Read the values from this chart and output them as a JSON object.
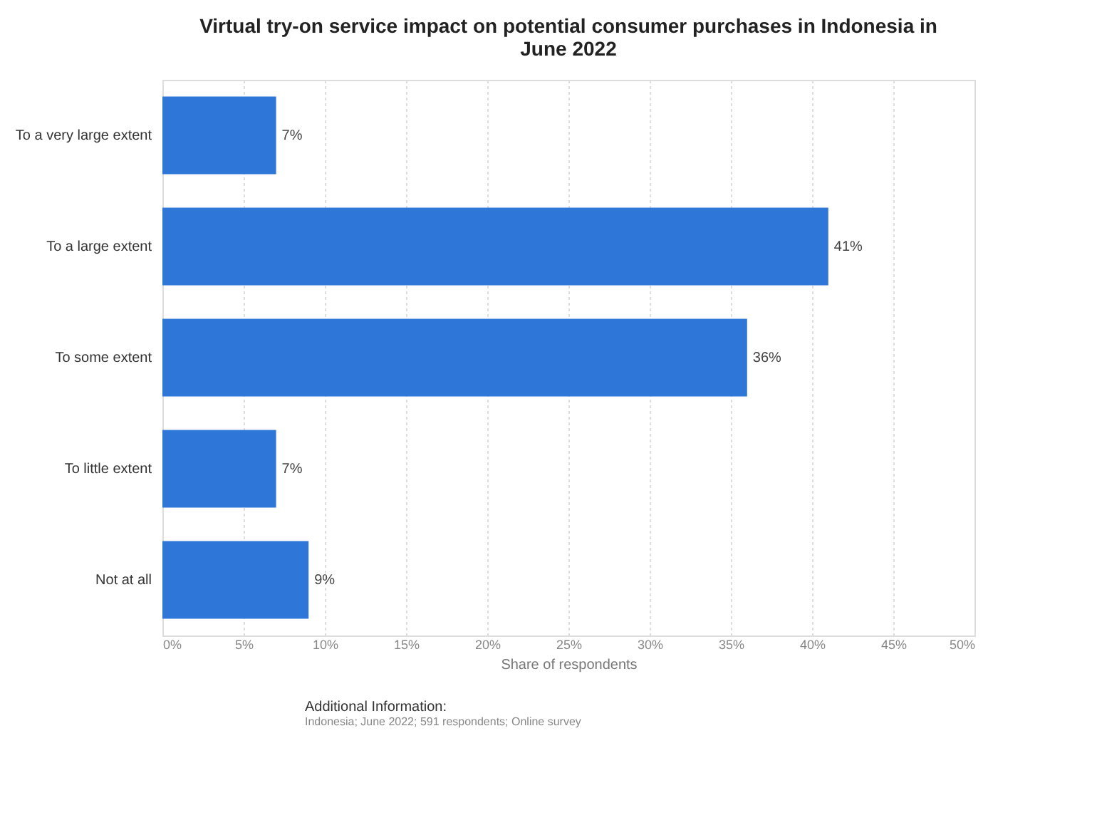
{
  "chart_data": {
    "type": "bar",
    "orientation": "horizontal",
    "title": "Virtual try-on service impact on potential consumer purchases in Indonesia in June 2022",
    "xlabel": "Share of respondents",
    "categories": [
      "To a very large extent",
      "To a large extent",
      "To some extent",
      "To little extent",
      "Not at all"
    ],
    "values": [
      7,
      41,
      36,
      7,
      9
    ],
    "value_labels": [
      "7%",
      "41%",
      "36%",
      "7%",
      "9%"
    ],
    "color": "#2f76d9",
    "xlim": [
      0,
      50
    ],
    "xticks": [
      {
        "value": 0,
        "label": "0%"
      },
      {
        "value": 5,
        "label": "5%"
      },
      {
        "value": 10,
        "label": "10%"
      },
      {
        "value": 15,
        "label": "15%"
      },
      {
        "value": 20,
        "label": "20%"
      },
      {
        "value": 25,
        "label": "25%"
      },
      {
        "value": 30,
        "label": "30%"
      },
      {
        "value": 35,
        "label": "35%"
      },
      {
        "value": 40,
        "label": "40%"
      },
      {
        "value": 45,
        "label": "45%"
      },
      {
        "value": 50,
        "label": "50%"
      }
    ],
    "grid": "x",
    "annotations": [
      "Additional Information:",
      "Indonesia; June 2022; 591 respondents; Online survey"
    ]
  }
}
